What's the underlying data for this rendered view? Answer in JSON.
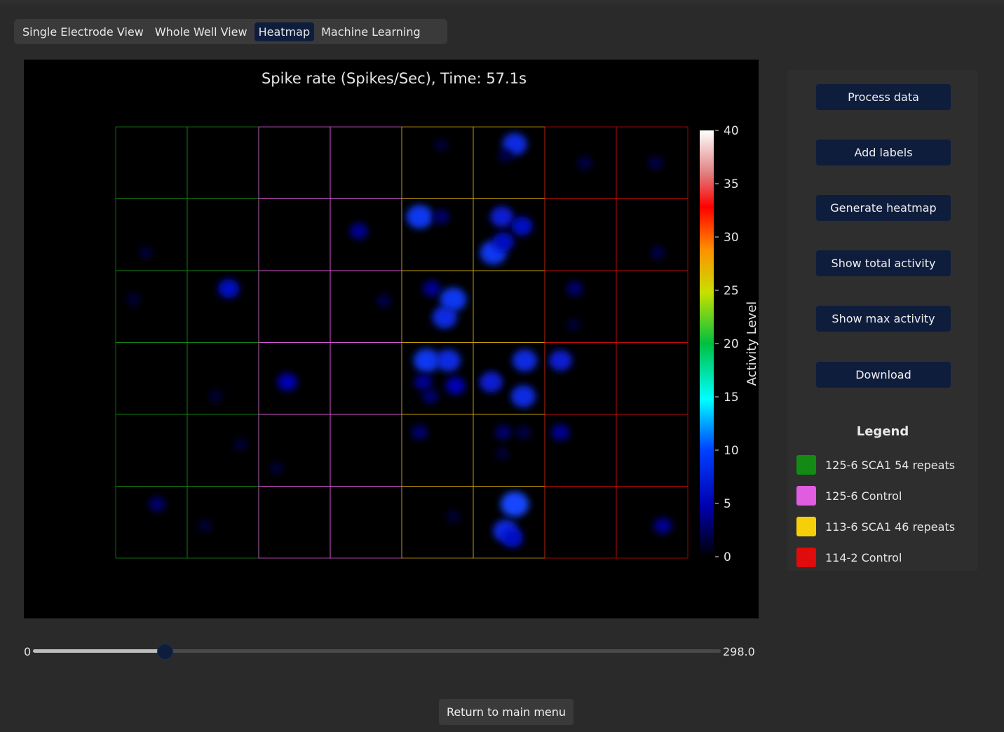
{
  "tabs": [
    {
      "label": "Single Electrode View",
      "active": false
    },
    {
      "label": "Whole Well View",
      "active": false
    },
    {
      "label": "Heatmap",
      "active": true
    },
    {
      "label": "Machine Learning",
      "active": false
    }
  ],
  "buttons": {
    "process": "Process data",
    "labels": "Add labels",
    "heatmap": "Generate heatmap",
    "total": "Show total activity",
    "max": "Show max activity",
    "download": "Download"
  },
  "legend": {
    "title": "Legend",
    "items": [
      {
        "label": "125-6 SCA1 54 repeats",
        "color": "#138a14"
      },
      {
        "label": "125-6 Control",
        "color": "#e05ce0"
      },
      {
        "label": "113-6 SCA1 46 repeats",
        "color": "#f5cf0a"
      },
      {
        "label": "114-2 Control",
        "color": "#e00b0b"
      }
    ]
  },
  "slider": {
    "min": "0",
    "max": "298.0",
    "value": 57.1,
    "range": [
      0,
      298
    ]
  },
  "return_label": "Return to main menu",
  "chart_data": {
    "type": "heatmap",
    "title": "Spike rate (Spikes/Sec), Time: 57.1s",
    "colorbar_label": "Activity Level",
    "colorbar_ticks": [
      "40",
      "35",
      "30",
      "25",
      "20",
      "15",
      "10",
      "5",
      "0"
    ],
    "value_range": [
      0,
      40
    ],
    "grid": {
      "rows": 6,
      "cols": 8
    },
    "well_group_colors": [
      "#138a14",
      "#138a14",
      "#e05ce0",
      "#e05ce0",
      "#c9a80a",
      "#c9a80a",
      "#c90b0b",
      "#c90b0b"
    ],
    "hotspots": [
      {
        "row": 0,
        "col": 5,
        "x": 0.58,
        "y": 0.24,
        "v": 8
      },
      {
        "row": 0,
        "col": 4,
        "x": 0.55,
        "y": 0.25,
        "v": 1.5
      },
      {
        "row": 0,
        "col": 5,
        "x": 0.45,
        "y": 0.4,
        "v": 2
      },
      {
        "row": 0,
        "col": 6,
        "x": 0.56,
        "y": 0.5,
        "v": 2
      },
      {
        "row": 0,
        "col": 7,
        "x": 0.55,
        "y": 0.5,
        "v": 2
      },
      {
        "row": 1,
        "col": 4,
        "x": 0.25,
        "y": 0.25,
        "v": 9
      },
      {
        "row": 1,
        "col": 4,
        "x": 0.55,
        "y": 0.25,
        "v": 3
      },
      {
        "row": 1,
        "col": 3,
        "x": 0.4,
        "y": 0.45,
        "v": 4
      },
      {
        "row": 1,
        "col": 5,
        "x": 0.4,
        "y": 0.25,
        "v": 7
      },
      {
        "row": 1,
        "col": 5,
        "x": 0.68,
        "y": 0.38,
        "v": 6
      },
      {
        "row": 1,
        "col": 5,
        "x": 0.28,
        "y": 0.75,
        "v": 9
      },
      {
        "row": 1,
        "col": 5,
        "x": 0.42,
        "y": 0.6,
        "v": 6
      },
      {
        "row": 1,
        "col": 0,
        "x": 0.42,
        "y": 0.75,
        "v": 1.5
      },
      {
        "row": 1,
        "col": 7,
        "x": 0.58,
        "y": 0.75,
        "v": 2
      },
      {
        "row": 2,
        "col": 1,
        "x": 0.58,
        "y": 0.25,
        "v": 6
      },
      {
        "row": 2,
        "col": 0,
        "x": 0.25,
        "y": 0.4,
        "v": 1.5
      },
      {
        "row": 2,
        "col": 3,
        "x": 0.75,
        "y": 0.42,
        "v": 2
      },
      {
        "row": 2,
        "col": 4,
        "x": 0.42,
        "y": 0.25,
        "v": 4
      },
      {
        "row": 2,
        "col": 4,
        "x": 0.72,
        "y": 0.4,
        "v": 9
      },
      {
        "row": 2,
        "col": 4,
        "x": 0.6,
        "y": 0.65,
        "v": 8
      },
      {
        "row": 2,
        "col": 6,
        "x": 0.42,
        "y": 0.25,
        "v": 3
      },
      {
        "row": 2,
        "col": 6,
        "x": 0.4,
        "y": 0.75,
        "v": 1.5
      },
      {
        "row": 3,
        "col": 2,
        "x": 0.4,
        "y": 0.55,
        "v": 5
      },
      {
        "row": 3,
        "col": 4,
        "x": 0.35,
        "y": 0.25,
        "v": 9
      },
      {
        "row": 3,
        "col": 4,
        "x": 0.65,
        "y": 0.25,
        "v": 8
      },
      {
        "row": 3,
        "col": 4,
        "x": 0.3,
        "y": 0.55,
        "v": 4
      },
      {
        "row": 3,
        "col": 4,
        "x": 0.75,
        "y": 0.6,
        "v": 5
      },
      {
        "row": 3,
        "col": 4,
        "x": 0.4,
        "y": 0.75,
        "v": 3
      },
      {
        "row": 3,
        "col": 5,
        "x": 0.72,
        "y": 0.25,
        "v": 8
      },
      {
        "row": 3,
        "col": 5,
        "x": 0.25,
        "y": 0.55,
        "v": 7
      },
      {
        "row": 3,
        "col": 5,
        "x": 0.7,
        "y": 0.75,
        "v": 8
      },
      {
        "row": 3,
        "col": 6,
        "x": 0.22,
        "y": 0.25,
        "v": 7
      },
      {
        "row": 3,
        "col": 1,
        "x": 0.4,
        "y": 0.75,
        "v": 1.5
      },
      {
        "row": 4,
        "col": 4,
        "x": 0.25,
        "y": 0.25,
        "v": 3
      },
      {
        "row": 4,
        "col": 5,
        "x": 0.42,
        "y": 0.25,
        "v": 3
      },
      {
        "row": 4,
        "col": 5,
        "x": 0.7,
        "y": 0.25,
        "v": 2
      },
      {
        "row": 4,
        "col": 6,
        "x": 0.22,
        "y": 0.25,
        "v": 4
      },
      {
        "row": 4,
        "col": 1,
        "x": 0.75,
        "y": 0.42,
        "v": 1.5
      },
      {
        "row": 4,
        "col": 2,
        "x": 0.25,
        "y": 0.75,
        "v": 1.5
      },
      {
        "row": 4,
        "col": 5,
        "x": 0.4,
        "y": 0.55,
        "v": 1.5
      },
      {
        "row": 5,
        "col": 5,
        "x": 0.58,
        "y": 0.25,
        "v": 10
      },
      {
        "row": 5,
        "col": 5,
        "x": 0.45,
        "y": 0.62,
        "v": 8
      },
      {
        "row": 5,
        "col": 5,
        "x": 0.55,
        "y": 0.72,
        "v": 6
      },
      {
        "row": 5,
        "col": 0,
        "x": 0.58,
        "y": 0.25,
        "v": 3
      },
      {
        "row": 5,
        "col": 1,
        "x": 0.25,
        "y": 0.55,
        "v": 1.5
      },
      {
        "row": 5,
        "col": 4,
        "x": 0.72,
        "y": 0.42,
        "v": 1.5
      },
      {
        "row": 5,
        "col": 7,
        "x": 0.65,
        "y": 0.55,
        "v": 4
      }
    ]
  }
}
